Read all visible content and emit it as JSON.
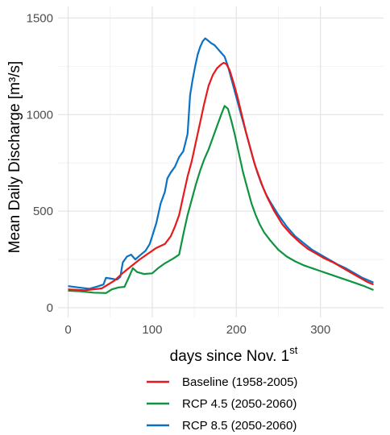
{
  "chart_data": {
    "type": "line",
    "xlabel": "days since Nov. 1",
    "xlabel_superscript": "st",
    "ylabel": "Mean Daily Discharge [m³/s]",
    "xlim": [
      -12,
      375
    ],
    "ylim": [
      -50,
      1560
    ],
    "x_ticks": [
      0,
      100,
      200,
      300
    ],
    "y_ticks": [
      0,
      500,
      1000,
      1500
    ],
    "grid": true,
    "legend_position": "bottom",
    "series": [
      {
        "name": "Baseline (1958-2005)",
        "color": "#e8191c",
        "points": [
          [
            0,
            95
          ],
          [
            20,
            90
          ],
          [
            40,
            100
          ],
          [
            55,
            140
          ],
          [
            65,
            180
          ],
          [
            75,
            215
          ],
          [
            85,
            250
          ],
          [
            95,
            280
          ],
          [
            105,
            310
          ],
          [
            115,
            330
          ],
          [
            122,
            370
          ],
          [
            127,
            420
          ],
          [
            132,
            480
          ],
          [
            137,
            580
          ],
          [
            142,
            680
          ],
          [
            147,
            760
          ],
          [
            152,
            860
          ],
          [
            157,
            960
          ],
          [
            162,
            1060
          ],
          [
            167,
            1150
          ],
          [
            172,
            1205
          ],
          [
            177,
            1240
          ],
          [
            182,
            1260
          ],
          [
            185,
            1268
          ],
          [
            188,
            1262
          ],
          [
            192,
            1230
          ],
          [
            197,
            1160
          ],
          [
            202,
            1080
          ],
          [
            207,
            990
          ],
          [
            212,
            900
          ],
          [
            217,
            820
          ],
          [
            222,
            740
          ],
          [
            227,
            680
          ],
          [
            232,
            620
          ],
          [
            237,
            570
          ],
          [
            245,
            500
          ],
          [
            255,
            430
          ],
          [
            265,
            380
          ],
          [
            275,
            340
          ],
          [
            285,
            305
          ],
          [
            295,
            280
          ],
          [
            305,
            255
          ],
          [
            315,
            235
          ],
          [
            325,
            210
          ],
          [
            335,
            185
          ],
          [
            345,
            160
          ],
          [
            355,
            135
          ],
          [
            363,
            120
          ]
        ]
      },
      {
        "name": "RCP 4.5 (2050-2060)",
        "color": "#0f933f",
        "points": [
          [
            0,
            88
          ],
          [
            15,
            85
          ],
          [
            30,
            78
          ],
          [
            45,
            76
          ],
          [
            52,
            95
          ],
          [
            60,
            105
          ],
          [
            67,
            108
          ],
          [
            73,
            165
          ],
          [
            77,
            205
          ],
          [
            82,
            185
          ],
          [
            90,
            175
          ],
          [
            100,
            178
          ],
          [
            107,
            205
          ],
          [
            115,
            230
          ],
          [
            125,
            255
          ],
          [
            132,
            275
          ],
          [
            137,
            380
          ],
          [
            142,
            480
          ],
          [
            147,
            560
          ],
          [
            152,
            640
          ],
          [
            157,
            710
          ],
          [
            162,
            770
          ],
          [
            167,
            820
          ],
          [
            172,
            880
          ],
          [
            177,
            940
          ],
          [
            182,
            1000
          ],
          [
            186,
            1045
          ],
          [
            190,
            1030
          ],
          [
            194,
            970
          ],
          [
            198,
            900
          ],
          [
            203,
            800
          ],
          [
            208,
            700
          ],
          [
            213,
            620
          ],
          [
            218,
            540
          ],
          [
            223,
            480
          ],
          [
            228,
            430
          ],
          [
            233,
            390
          ],
          [
            240,
            350
          ],
          [
            250,
            300
          ],
          [
            260,
            265
          ],
          [
            270,
            240
          ],
          [
            280,
            220
          ],
          [
            290,
            205
          ],
          [
            300,
            190
          ],
          [
            310,
            175
          ],
          [
            320,
            160
          ],
          [
            330,
            145
          ],
          [
            340,
            130
          ],
          [
            350,
            115
          ],
          [
            363,
            92
          ]
        ]
      },
      {
        "name": "RCP 8.5 (2050-2060)",
        "color": "#0a72c6",
        "points": [
          [
            0,
            112
          ],
          [
            12,
            105
          ],
          [
            25,
            98
          ],
          [
            35,
            110
          ],
          [
            42,
            120
          ],
          [
            45,
            155
          ],
          [
            52,
            150
          ],
          [
            58,
            145
          ],
          [
            62,
            160
          ],
          [
            65,
            235
          ],
          [
            70,
            265
          ],
          [
            75,
            275
          ],
          [
            80,
            250
          ],
          [
            85,
            270
          ],
          [
            92,
            295
          ],
          [
            97,
            330
          ],
          [
            100,
            370
          ],
          [
            105,
            440
          ],
          [
            110,
            540
          ],
          [
            115,
            600
          ],
          [
            118,
            670
          ],
          [
            122,
            700
          ],
          [
            127,
            730
          ],
          [
            132,
            780
          ],
          [
            137,
            810
          ],
          [
            142,
            900
          ],
          [
            145,
            1100
          ],
          [
            148,
            1180
          ],
          [
            151,
            1250
          ],
          [
            154,
            1310
          ],
          [
            157,
            1350
          ],
          [
            160,
            1380
          ],
          [
            163,
            1395
          ],
          [
            166,
            1385
          ],
          [
            170,
            1370
          ],
          [
            174,
            1360
          ],
          [
            178,
            1340
          ],
          [
            182,
            1320
          ],
          [
            186,
            1300
          ],
          [
            190,
            1250
          ],
          [
            195,
            1170
          ],
          [
            200,
            1090
          ],
          [
            205,
            1010
          ],
          [
            210,
            930
          ],
          [
            215,
            850
          ],
          [
            220,
            770
          ],
          [
            225,
            700
          ],
          [
            230,
            640
          ],
          [
            235,
            590
          ],
          [
            240,
            550
          ],
          [
            250,
            480
          ],
          [
            260,
            420
          ],
          [
            270,
            370
          ],
          [
            280,
            335
          ],
          [
            290,
            300
          ],
          [
            300,
            275
          ],
          [
            310,
            250
          ],
          [
            320,
            225
          ],
          [
            330,
            205
          ],
          [
            340,
            180
          ],
          [
            350,
            155
          ],
          [
            363,
            130
          ]
        ]
      }
    ]
  }
}
